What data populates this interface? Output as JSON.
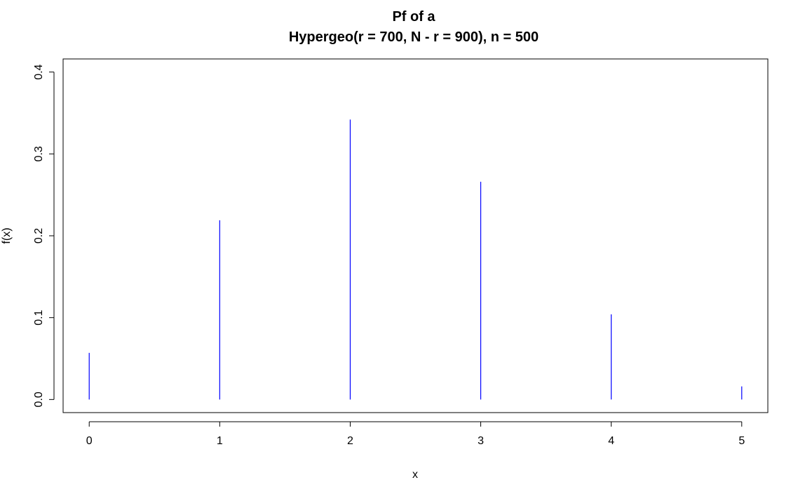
{
  "chart_data": {
    "type": "bar",
    "title": "Pf of a",
    "subtitle": "Hypergeo(r = 700,  N - r = 900), n = 500",
    "xlabel": "x",
    "ylabel": "f(x)",
    "x": [
      0,
      1,
      2,
      3,
      4,
      5
    ],
    "values": [
      0.057,
      0.219,
      0.342,
      0.266,
      0.104,
      0.016
    ],
    "xlim": [
      -0.2,
      5.2
    ],
    "ylim": [
      -0.016,
      0.416
    ],
    "x_ticks": [
      0,
      1,
      2,
      3,
      4,
      5
    ],
    "x_tick_labels": [
      "0",
      "1",
      "2",
      "3",
      "4",
      "5"
    ],
    "y_ticks": [
      0.0,
      0.1,
      0.2,
      0.3,
      0.4
    ],
    "y_tick_labels": [
      "0.0",
      "0.1",
      "0.2",
      "0.3",
      "0.4"
    ],
    "bar_color": "#0000ff",
    "grid": false,
    "legend": "none"
  }
}
